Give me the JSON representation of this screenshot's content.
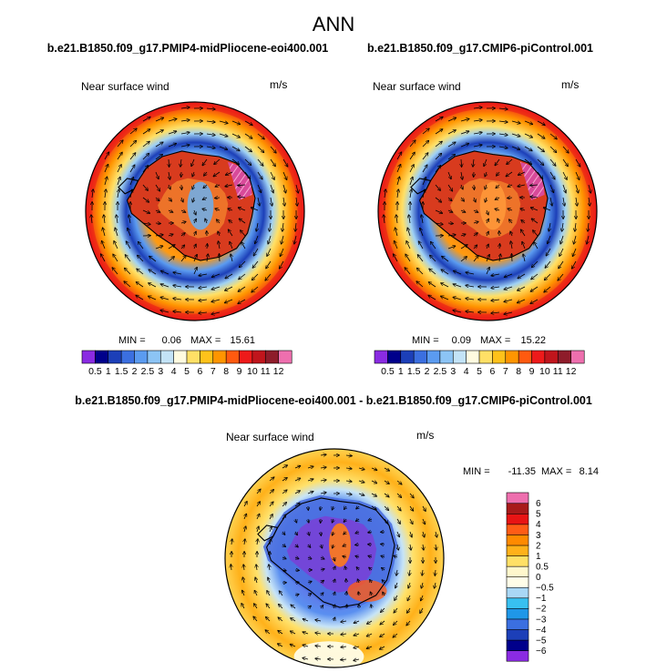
{
  "title": "ANN",
  "panels": [
    {
      "case": "b.e21.B1850.f09_g17.PMIP4-midPliocene-eoi400.001",
      "field": "Near surface wind",
      "units": "m/s",
      "min_label": "MIN =",
      "min": "0.06",
      "max_label": "MAX =",
      "max": "15.61",
      "theme": "abs"
    },
    {
      "case": "b.e21.B1850.f09_g17.CMIP6-piControl.001",
      "field": "Near surface wind",
      "units": "m/s",
      "min_label": "MIN =",
      "min": "0.09",
      "max_label": "MAX =",
      "max": "15.22",
      "theme": "abs"
    },
    {
      "case": "b.e21.B1850.f09_g17.PMIP4-midPliocene-eoi400.001 - b.e21.B1850.f09_g17.CMIP6-piControl.001",
      "field": "Near surface wind",
      "units": "m/s",
      "min_label": "MIN =",
      "min": "-11.35",
      "max_label": "MAX =",
      "max": "8.14",
      "theme": "diff"
    }
  ],
  "chart_data": [
    {
      "type": "heatmap",
      "projection": "south-polar-stereographic",
      "title": "Near surface wind",
      "units": "m/s",
      "min": 0.06,
      "max": 15.61,
      "colorbar": {
        "orientation": "horizontal",
        "levels": [
          "0.5",
          "1",
          "1.5",
          "2",
          "2.5",
          "3",
          "4",
          "5",
          "6",
          "7",
          "8",
          "9",
          "10",
          "11",
          "12"
        ],
        "colors": [
          "#8a2be2",
          "#00008b",
          "#1c3fb8",
          "#3b6fe0",
          "#5b9bf0",
          "#8cc4f5",
          "#c3e3f7",
          "#fffbe0",
          "#ffe066",
          "#ffc21a",
          "#ff9500",
          "#ff5a0f",
          "#ee1a1a",
          "#c0151c",
          "#8e1c2a",
          "#ee6fae"
        ]
      }
    },
    {
      "type": "heatmap",
      "projection": "south-polar-stereographic",
      "title": "Near surface wind",
      "units": "m/s",
      "min": 0.09,
      "max": 15.22,
      "colorbar": {
        "orientation": "horizontal",
        "levels": [
          "0.5",
          "1",
          "1.5",
          "2",
          "2.5",
          "3",
          "4",
          "5",
          "6",
          "7",
          "8",
          "9",
          "10",
          "11",
          "12"
        ],
        "colors": [
          "#8a2be2",
          "#00008b",
          "#1c3fb8",
          "#3b6fe0",
          "#5b9bf0",
          "#8cc4f5",
          "#c3e3f7",
          "#fffbe0",
          "#ffe066",
          "#ffc21a",
          "#ff9500",
          "#ff5a0f",
          "#ee1a1a",
          "#c0151c",
          "#8e1c2a",
          "#ee6fae"
        ]
      }
    },
    {
      "type": "heatmap",
      "projection": "south-polar-stereographic",
      "title": "Near surface wind",
      "units": "m/s",
      "min": -11.35,
      "max": 8.14,
      "colorbar": {
        "orientation": "vertical",
        "levels": [
          "-6",
          "-5",
          "-4",
          "-3",
          "-2",
          "-1",
          "-0.5",
          "0",
          "0.5",
          "1",
          "2",
          "3",
          "4",
          "5",
          "6"
        ],
        "colors": [
          "#8a2be2",
          "#00008b",
          "#1c3fb8",
          "#3b6fe0",
          "#1f97e8",
          "#38c0f0",
          "#a9d7f5",
          "#fffde8",
          "#fff7cc",
          "#ffe066",
          "#ffb11a",
          "#ff8a00",
          "#ff5c16",
          "#e81414",
          "#a81a1a",
          "#ee6fae"
        ]
      }
    }
  ]
}
